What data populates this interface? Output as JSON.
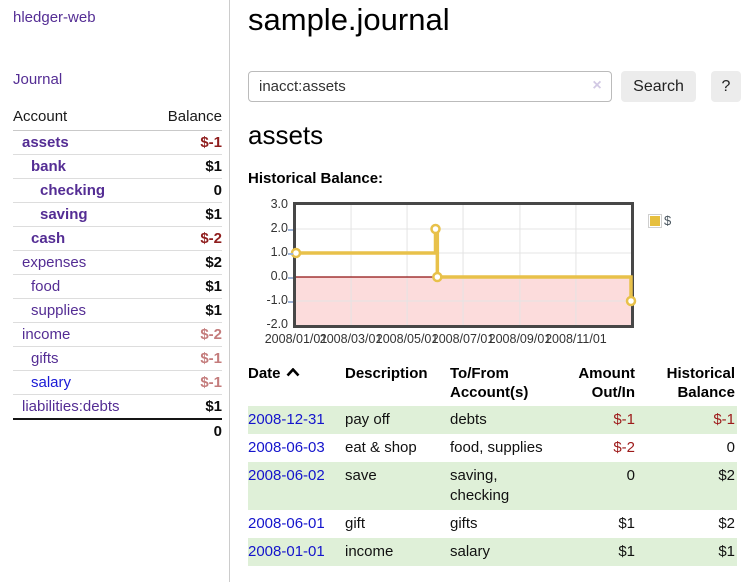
{
  "sidebar": {
    "app_title": "hledger-web",
    "nav": {
      "journal": "Journal"
    },
    "table": {
      "headers": {
        "account": "Account",
        "balance": "Balance"
      },
      "rows": [
        {
          "name": "assets",
          "depth": 1,
          "bold": true,
          "balance": "$-1",
          "balance_style": "neg-strong"
        },
        {
          "name": "bank",
          "depth": 2,
          "bold": true,
          "balance": "$1",
          "balance_style": ""
        },
        {
          "name": "checking",
          "depth": 3,
          "bold": true,
          "balance": "0",
          "balance_style": ""
        },
        {
          "name": "saving",
          "depth": 3,
          "bold": true,
          "balance": "$1",
          "balance_style": ""
        },
        {
          "name": "cash",
          "depth": 2,
          "bold": true,
          "balance": "$-2",
          "balance_style": "neg-strong"
        },
        {
          "name": "expenses",
          "depth": 1,
          "bold": false,
          "balance": "$2",
          "balance_style": ""
        },
        {
          "name": "food",
          "depth": 2,
          "bold": false,
          "balance": "$1",
          "balance_style": ""
        },
        {
          "name": "supplies",
          "depth": 2,
          "bold": false,
          "balance": "$1",
          "balance_style": ""
        },
        {
          "name": "income",
          "depth": 1,
          "bold": false,
          "balance": "$-2",
          "balance_style": "neg-soft"
        },
        {
          "name": "gifts",
          "depth": 2,
          "bold": false,
          "balance": "$-1",
          "balance_style": "neg-soft"
        },
        {
          "name": "salary",
          "depth": 2,
          "bold": false,
          "balance": "$-1",
          "balance_style": "neg-soft",
          "blue": true
        },
        {
          "name": "liabilities:debts",
          "depth": 1,
          "bold": false,
          "balance": "$1",
          "balance_style": "",
          "last": true
        }
      ],
      "total": "0"
    }
  },
  "main": {
    "title": "sample.journal",
    "search": {
      "value": "inacct:assets",
      "clear_label": "×",
      "search_button": "Search",
      "help_button": "?"
    },
    "heading": "assets",
    "chart_title": "Historical Balance:"
  },
  "chart_data": {
    "type": "line",
    "step": true,
    "title": "Historical Balance",
    "series": [
      {
        "name": "$",
        "points": [
          {
            "date": "2008-01-01",
            "day": 0,
            "value": 1
          },
          {
            "date": "2008-06-01",
            "day": 152,
            "value": 2
          },
          {
            "date": "2008-06-03",
            "day": 154,
            "value": 0
          },
          {
            "date": "2008-12-31",
            "day": 365,
            "value": -1
          }
        ]
      }
    ],
    "ylim": [
      -2,
      3
    ],
    "yticks": [
      "3.0",
      "2.0",
      "1.0",
      "0.0",
      "-1.0",
      "-2.0"
    ],
    "xticks": [
      {
        "label": "2008/01/01",
        "day": 0
      },
      {
        "label": "2008/03/01",
        "day": 60
      },
      {
        "label": "2008/05/01",
        "day": 121
      },
      {
        "label": "2008/07/01",
        "day": 182
      },
      {
        "label": "2008/09/01",
        "day": 244
      },
      {
        "label": "2008/11/01",
        "day": 305
      }
    ],
    "x_span_days": 365,
    "legend": {
      "label": "$",
      "position": "top-right"
    },
    "grid": true,
    "colors": {
      "line": "#e8c14a",
      "marker_fill": "#ffffff",
      "negative_fill": "#fcdcdc",
      "zero_line": "#8f1010",
      "gridline": "#e4e4e4",
      "border": "#474747"
    }
  },
  "register": {
    "headers": {
      "date": "Date",
      "description": "Description",
      "accounts_line1": "To/From",
      "accounts_line2": "Account(s)",
      "amount_line1": "Amount",
      "amount_line2": "Out/In",
      "balance_line1": "Historical",
      "balance_line2": "Balance"
    },
    "rows": [
      {
        "date": "2008-12-31",
        "description": "pay off",
        "accounts": "debts",
        "amount": "$-1",
        "amount_negative": true,
        "balance": "$-1",
        "balance_negative": true
      },
      {
        "date": "2008-06-03",
        "description": "eat & shop",
        "accounts": "food, supplies",
        "amount": "$-2",
        "amount_negative": true,
        "balance": "0",
        "balance_negative": false
      },
      {
        "date": "2008-06-02",
        "description": "save",
        "accounts": "saving, checking",
        "amount": "0",
        "amount_negative": false,
        "balance": "$2",
        "balance_negative": false
      },
      {
        "date": "2008-06-01",
        "description": "gift",
        "accounts": "gifts",
        "amount": "$1",
        "amount_negative": false,
        "balance": "$2",
        "balance_negative": false
      },
      {
        "date": "2008-01-01",
        "description": "income",
        "accounts": "salary",
        "amount": "$1",
        "amount_negative": false,
        "balance": "$1",
        "balance_negative": false
      }
    ]
  }
}
